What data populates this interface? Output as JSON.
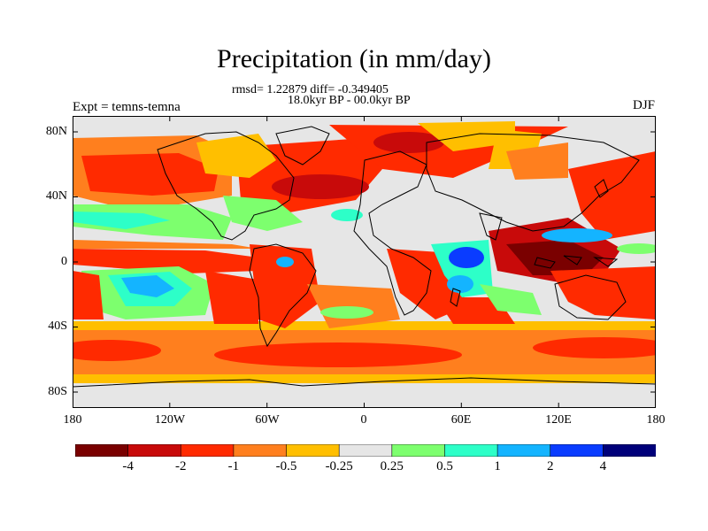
{
  "title": "Precipitation (in mm/day)",
  "stats_line": "rmsd= 1.22879 diff= -0.349405",
  "period_line": "18.0kyr BP - 00.0kyr BP",
  "experiment_label": "Expt = temns-temna",
  "season_label": "DJF",
  "map": {
    "projection": "cylindrical equidistant",
    "lon_range": [
      -180,
      180
    ],
    "lat_range": [
      -90,
      90
    ],
    "x_ticks": [
      {
        "value": -180,
        "label": "180"
      },
      {
        "value": -120,
        "label": "120W"
      },
      {
        "value": -60,
        "label": "60W"
      },
      {
        "value": 0,
        "label": "0"
      },
      {
        "value": 60,
        "label": "60E"
      },
      {
        "value": 120,
        "label": "120E"
      },
      {
        "value": 180,
        "label": "180"
      }
    ],
    "y_ticks": [
      {
        "value": 80,
        "label": "80N"
      },
      {
        "value": 40,
        "label": "40N"
      },
      {
        "value": 0,
        "label": "0"
      },
      {
        "value": -40,
        "label": "40S"
      },
      {
        "value": -80,
        "label": "80S"
      }
    ],
    "background_color": "#e6e6e6",
    "coastline_color": "#000000"
  },
  "colorbar": {
    "colors": [
      "#7a0000",
      "#c80a0a",
      "#ff2a00",
      "#ff7f1e",
      "#ffbf00",
      "#e6e6e6",
      "#7dff6e",
      "#2dffc8",
      "#14b4ff",
      "#0a3cff",
      "#00007a"
    ],
    "labels": [
      "-4",
      "-2",
      "-1",
      "-0.5",
      "-0.25",
      "0.25",
      "0.5",
      "1",
      "2",
      "4"
    ]
  }
}
